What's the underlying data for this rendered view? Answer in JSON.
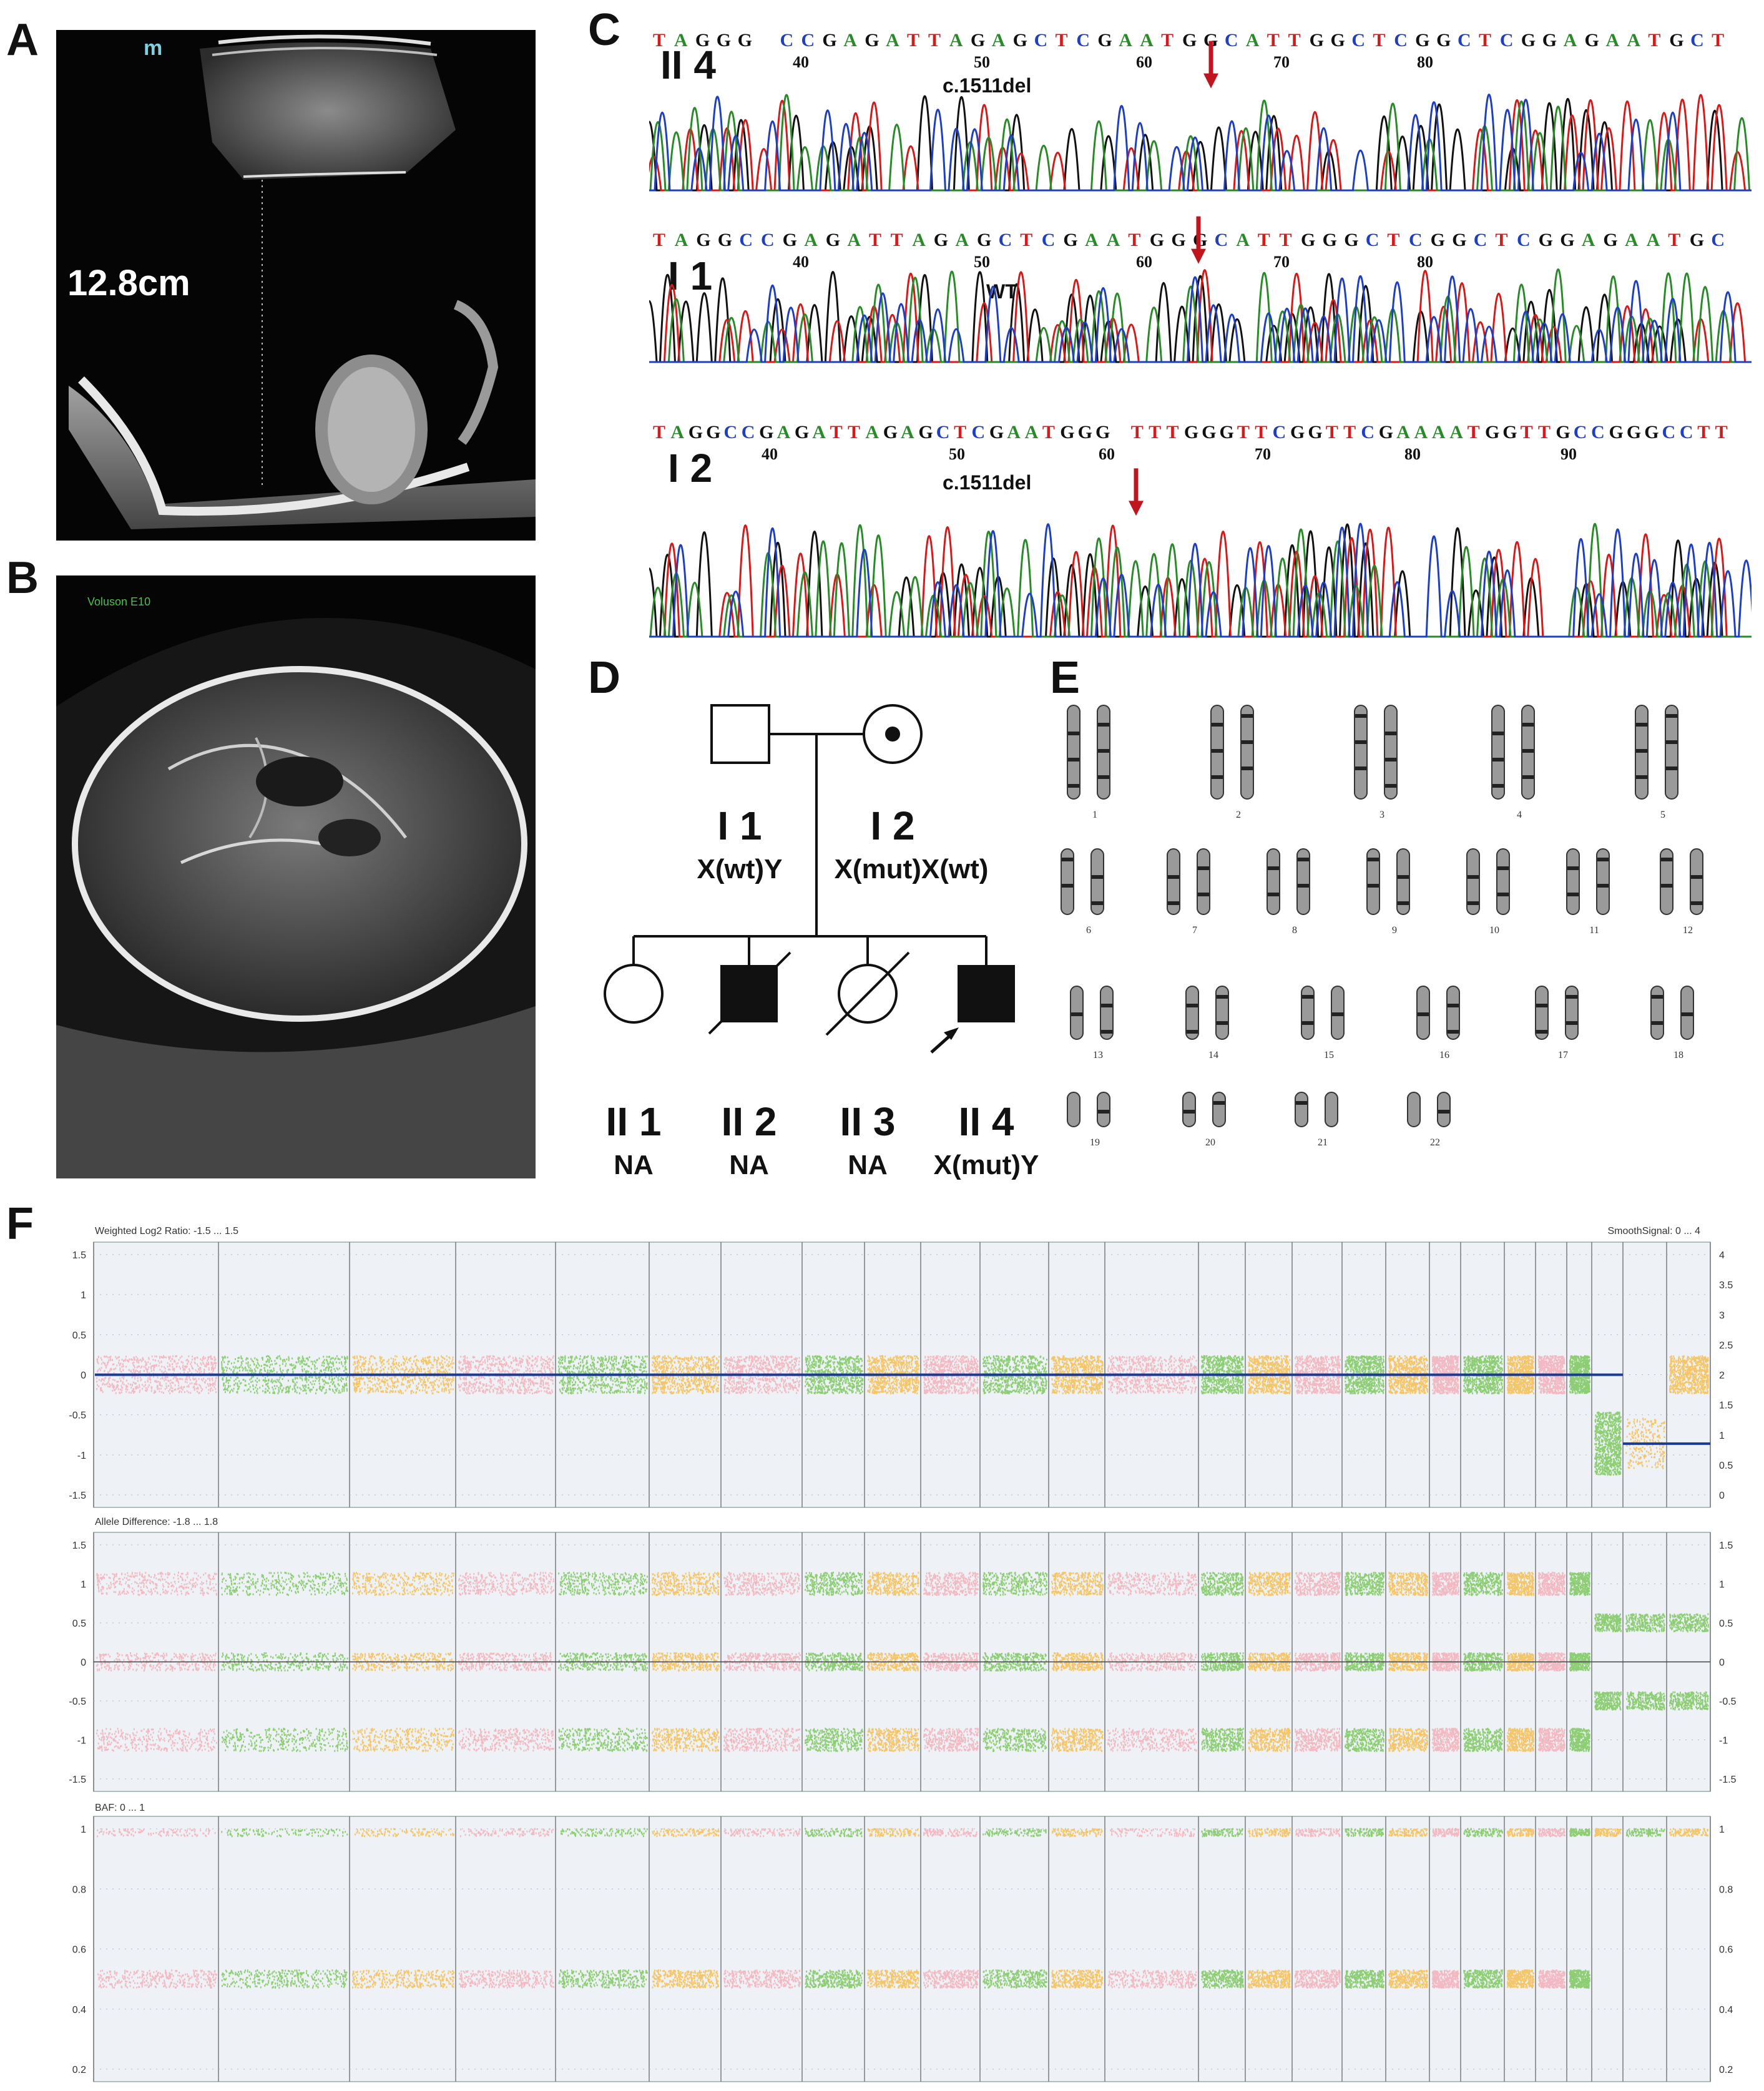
{
  "panels": {
    "A": {
      "label": "A",
      "measurement": "12.8cm",
      "logo": "m"
    },
    "B": {
      "label": "B",
      "device": "Voluson E10"
    },
    "C": {
      "label": "C",
      "rows": [
        {
          "sample": "II 4",
          "sequence": "TAGGG CCGAGATTAGAGCTCGAATGGCATTGGCTCGGCTCGGAGAATGCT",
          "ticks": [
            "40",
            "50",
            "60",
            "70",
            "80"
          ],
          "annotation": "c.1511del"
        },
        {
          "sample": "I 1",
          "sequence": "TAGGCCGAGATTAGAGCTCGAATGGGCATTGGGCTCGGCTCGGAGAATGC",
          "ticks": [
            "40",
            "50",
            "60",
            "70",
            "80"
          ],
          "annotation": "WT"
        },
        {
          "sample": "I 2",
          "sequence": "TAGGCCGAGATTAGAGCTCGAATGGG TTTGGGTTCGGTTCGAAAATGGTTGCCGGGCCTT",
          "ticks": [
            "40",
            "50",
            "60",
            "70",
            "80",
            "90"
          ],
          "annotation": "c.1511del"
        }
      ]
    },
    "D": {
      "label": "D",
      "parents": [
        {
          "id": "I 1",
          "genotype": "X(wt)Y"
        },
        {
          "id": "I 2",
          "genotype": "X(mut)X(wt)"
        }
      ],
      "children": [
        {
          "id": "II 1",
          "genotype": "NA"
        },
        {
          "id": "II 2",
          "genotype": "NA"
        },
        {
          "id": "II 3",
          "genotype": "NA"
        },
        {
          "id": "II 4",
          "genotype": "X(mut)Y"
        }
      ]
    },
    "E": {
      "label": "E",
      "chromosomes": [
        "1",
        "2",
        "3",
        "4",
        "5",
        "6",
        "7",
        "8",
        "9",
        "10",
        "11",
        "12",
        "13",
        "14",
        "15",
        "16",
        "17",
        "18",
        "19",
        "20",
        "21",
        "22"
      ]
    },
    "F": {
      "label": "F",
      "tracks": [
        {
          "title": "Weighted Log2 Ratio: -1.5 ... 1.5",
          "right_title": "SmoothSignal: 0 ... 4",
          "left_ticks": [
            "1.5",
            "1",
            "0.5",
            "0",
            "-0.5",
            "-1",
            "-1.5"
          ],
          "right_ticks": [
            "4",
            "3.5",
            "3",
            "2.5",
            "2",
            "1.5",
            "1",
            "0.5",
            "0"
          ]
        },
        {
          "title": "Allele Difference: -1.8 ... 1.8",
          "left_ticks": [
            "1.5",
            "1",
            "0.5",
            "0",
            "-0.5",
            "-1",
            "-1.5"
          ],
          "right_ticks": [
            "1.5",
            "1",
            "0.5",
            "0",
            "-0.5",
            "-1",
            "-1.5"
          ]
        },
        {
          "title": "BAF: 0 ... 1",
          "left_ticks": [
            "1",
            "0.8",
            "0.6",
            "0.4",
            "0.2"
          ],
          "right_ticks": [
            "1",
            "0.8",
            "0.6",
            "0.4",
            "0.2"
          ]
        }
      ]
    }
  },
  "colors": {
    "A": "#2a8a2a",
    "C": "#1f3fbf",
    "G": "#111111",
    "T": "#d41a1a",
    "arrow": "#c0141e",
    "pink": "#f4a6b0",
    "green": "#6cc24a",
    "orange": "#f5b73a",
    "blue": "#1a3a9a"
  }
}
